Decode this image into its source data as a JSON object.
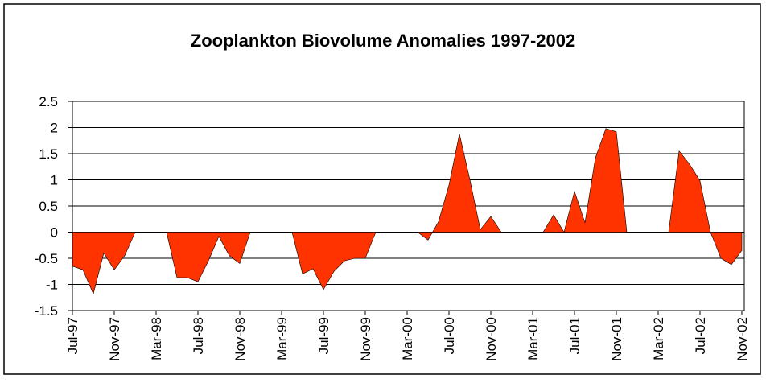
{
  "chart_data": {
    "type": "area",
    "title": "Zooplankton Biovolume Anomalies 1997-2002",
    "categories": [
      "Jul-97",
      null,
      null,
      null,
      "Nov-97",
      null,
      null,
      null,
      "Mar-98",
      null,
      null,
      null,
      "Jul-98",
      null,
      null,
      null,
      "Nov-98",
      null,
      null,
      null,
      "Mar-99",
      null,
      null,
      null,
      "Jul-99",
      null,
      null,
      null,
      "Nov-99",
      null,
      null,
      null,
      "Mar-00",
      null,
      null,
      null,
      "Jul-00",
      null,
      null,
      null,
      "Nov-00",
      null,
      null,
      null,
      "Mar-01",
      null,
      null,
      null,
      "Jul-01",
      null,
      null,
      null,
      "Nov-01",
      null,
      null,
      null,
      "Mar-02",
      null,
      null,
      null,
      "Jul-02",
      null,
      null,
      null,
      "Nov-02"
    ],
    "values": [
      -0.65,
      -0.72,
      -1.18,
      -0.4,
      -0.72,
      -0.45,
      0,
      0,
      0,
      0,
      -0.87,
      -0.87,
      -0.95,
      -0.55,
      -0.08,
      -0.45,
      -0.6,
      0,
      0,
      0,
      0,
      0,
      -0.8,
      -0.7,
      -1.1,
      -0.75,
      -0.55,
      -0.5,
      -0.5,
      0,
      0,
      0,
      0,
      0,
      -0.15,
      0.2,
      0.9,
      1.88,
      1.0,
      0.05,
      0.3,
      0,
      0,
      0,
      0,
      0,
      0.33,
      0,
      0.78,
      0.18,
      1.42,
      1.98,
      1.92,
      0,
      0,
      0,
      0,
      0,
      1.55,
      1.3,
      0.98,
      0,
      -0.5,
      -0.62,
      -0.35
    ],
    "color": "#ff3300",
    "ylim": [
      -1.5,
      2.5
    ],
    "yticks": [
      -1.5,
      -1,
      -0.5,
      0,
      0.5,
      1,
      1.5,
      2,
      2.5
    ],
    "grid": true
  }
}
